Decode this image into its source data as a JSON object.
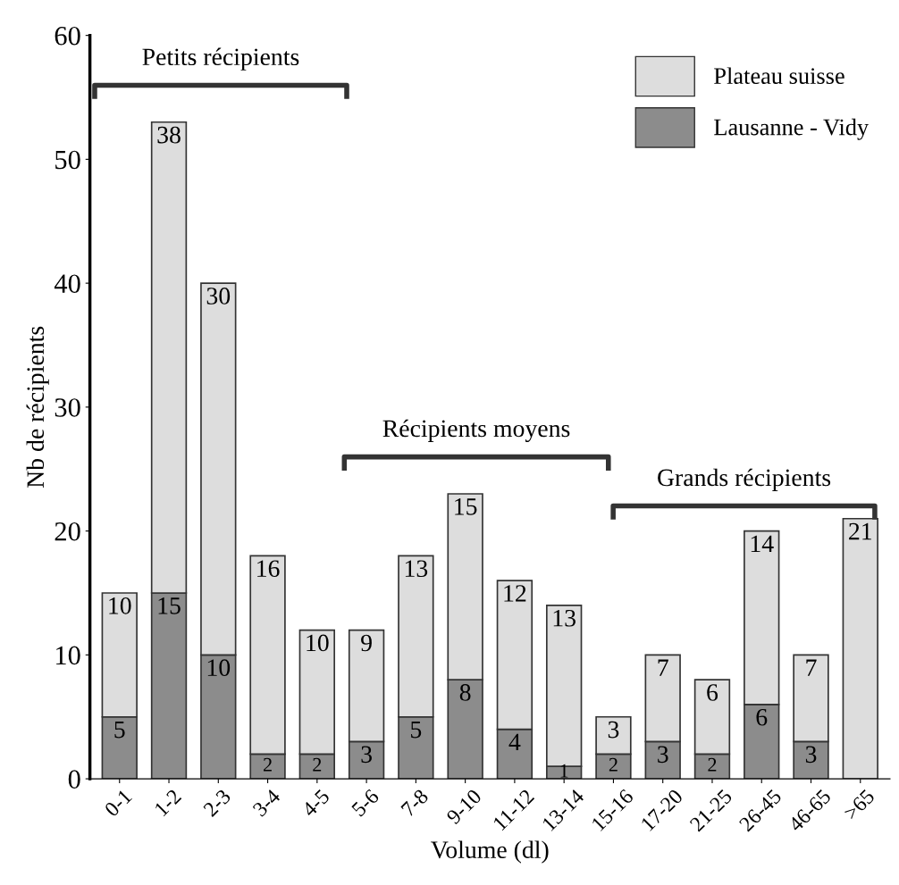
{
  "chart_data": {
    "type": "bar",
    "stacked": true,
    "xlabel": "Volume (dl)",
    "ylabel": "Nb de récipients",
    "categories": [
      "0-1",
      "1-2",
      "2-3",
      "3-4",
      "4-5",
      "5-6",
      "7-8",
      "9-10",
      "11-12",
      "13-14",
      "15-16",
      "17-20",
      "21-25",
      "26-45",
      "46-65",
      ">65"
    ],
    "series": [
      {
        "name": "Lausanne - Vidy",
        "color": "#8c8c8c",
        "values": [
          5,
          15,
          10,
          2,
          2,
          3,
          5,
          8,
          4,
          1,
          2,
          3,
          2,
          6,
          3,
          null
        ]
      },
      {
        "name": "Plateau suisse",
        "color": "#dddddd",
        "values": [
          10,
          38,
          30,
          16,
          10,
          9,
          13,
          15,
          12,
          13,
          3,
          7,
          6,
          14,
          7,
          21
        ]
      }
    ],
    "ylim": [
      0,
      60
    ],
    "yticks": [
      0,
      10,
      20,
      30,
      40,
      50,
      60
    ],
    "data_labels": true,
    "legend": "top right",
    "grid": false,
    "annotations": [
      "Petits récipients",
      "Récipients moyens",
      "Grands récipients"
    ]
  }
}
